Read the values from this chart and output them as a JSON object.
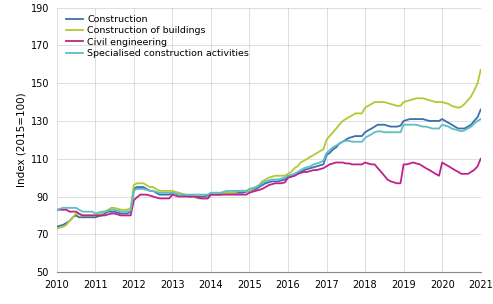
{
  "ylabel": "Index (2015=100)",
  "xlim": [
    2010,
    2021
  ],
  "ylim": [
    50,
    190
  ],
  "yticks": [
    50,
    70,
    90,
    110,
    130,
    150,
    170,
    190
  ],
  "xticks": [
    2010,
    2011,
    2012,
    2013,
    2014,
    2015,
    2016,
    2017,
    2018,
    2019,
    2020,
    2021
  ],
  "series": {
    "Construction": {
      "color": "#3d6faa",
      "x": [
        2010.0,
        2010.08,
        2010.17,
        2010.25,
        2010.33,
        2010.42,
        2010.5,
        2010.58,
        2010.67,
        2010.75,
        2010.83,
        2010.92,
        2011.0,
        2011.08,
        2011.17,
        2011.25,
        2011.33,
        2011.42,
        2011.5,
        2011.58,
        2011.67,
        2011.75,
        2011.83,
        2011.92,
        2012.0,
        2012.08,
        2012.17,
        2012.25,
        2012.33,
        2012.42,
        2012.5,
        2012.58,
        2012.67,
        2012.75,
        2012.83,
        2012.92,
        2013.0,
        2013.08,
        2013.17,
        2013.25,
        2013.33,
        2013.42,
        2013.5,
        2013.58,
        2013.67,
        2013.75,
        2013.83,
        2013.92,
        2014.0,
        2014.08,
        2014.17,
        2014.25,
        2014.33,
        2014.42,
        2014.5,
        2014.58,
        2014.67,
        2014.75,
        2014.83,
        2014.92,
        2015.0,
        2015.08,
        2015.17,
        2015.25,
        2015.33,
        2015.42,
        2015.5,
        2015.58,
        2015.67,
        2015.75,
        2015.83,
        2015.92,
        2016.0,
        2016.08,
        2016.17,
        2016.25,
        2016.33,
        2016.42,
        2016.5,
        2016.58,
        2016.67,
        2016.75,
        2016.83,
        2016.92,
        2017.0,
        2017.08,
        2017.17,
        2017.25,
        2017.33,
        2017.42,
        2017.5,
        2017.58,
        2017.67,
        2017.75,
        2017.83,
        2017.92,
        2018.0,
        2018.08,
        2018.17,
        2018.25,
        2018.33,
        2018.42,
        2018.5,
        2018.58,
        2018.67,
        2018.75,
        2018.83,
        2018.92,
        2019.0,
        2019.08,
        2019.17,
        2019.25,
        2019.33,
        2019.42,
        2019.5,
        2019.58,
        2019.67,
        2019.75,
        2019.83,
        2019.92,
        2020.0,
        2020.08,
        2020.17,
        2020.25,
        2020.33,
        2020.42,
        2020.5,
        2020.58,
        2020.67,
        2020.75,
        2020.83,
        2020.92,
        2021.0
      ],
      "y": [
        74,
        74.5,
        75,
        76,
        77,
        79,
        80,
        79,
        79,
        79,
        79,
        79,
        79,
        79.5,
        80,
        81,
        82,
        82,
        82,
        81.5,
        81,
        81,
        81,
        82,
        94,
        95,
        95,
        95,
        94,
        93,
        93,
        92,
        91,
        91,
        91,
        91,
        92,
        91.5,
        91,
        91,
        90.5,
        90,
        90,
        90,
        90,
        90,
        90,
        90.5,
        91,
        91,
        91,
        91,
        91.5,
        92,
        92,
        92,
        92,
        92,
        92,
        92.5,
        93,
        93.5,
        94,
        95,
        96,
        97,
        97.5,
        98,
        98,
        98,
        98.5,
        99,
        100,
        100.5,
        101,
        102,
        103,
        104,
        104.5,
        105,
        105.5,
        106,
        106.5,
        107,
        112,
        113,
        115,
        116,
        118,
        119,
        120,
        121,
        121.5,
        122,
        122,
        122,
        124,
        125,
        126,
        127,
        128,
        128,
        128,
        127.5,
        127,
        127,
        127,
        127.5,
        130,
        130.5,
        131,
        131,
        131,
        131,
        131,
        130.5,
        130,
        130,
        130,
        130,
        131,
        130,
        129,
        128,
        127,
        126,
        126,
        126,
        127,
        128,
        130,
        132,
        136
      ]
    },
    "Construction of buildings": {
      "color": "#b5c832",
      "x": [
        2010.0,
        2010.08,
        2010.17,
        2010.25,
        2010.33,
        2010.42,
        2010.5,
        2010.58,
        2010.67,
        2010.75,
        2010.83,
        2010.92,
        2011.0,
        2011.08,
        2011.17,
        2011.25,
        2011.33,
        2011.42,
        2011.5,
        2011.58,
        2011.67,
        2011.75,
        2011.83,
        2011.92,
        2012.0,
        2012.08,
        2012.17,
        2012.25,
        2012.33,
        2012.42,
        2012.5,
        2012.58,
        2012.67,
        2012.75,
        2012.83,
        2012.92,
        2013.0,
        2013.08,
        2013.17,
        2013.25,
        2013.33,
        2013.42,
        2013.5,
        2013.58,
        2013.67,
        2013.75,
        2013.83,
        2013.92,
        2014.0,
        2014.08,
        2014.17,
        2014.25,
        2014.33,
        2014.42,
        2014.5,
        2014.58,
        2014.67,
        2014.75,
        2014.83,
        2014.92,
        2015.0,
        2015.08,
        2015.17,
        2015.25,
        2015.33,
        2015.42,
        2015.5,
        2015.58,
        2015.67,
        2015.75,
        2015.83,
        2015.92,
        2016.0,
        2016.08,
        2016.17,
        2016.25,
        2016.33,
        2016.42,
        2016.5,
        2016.58,
        2016.67,
        2016.75,
        2016.83,
        2016.92,
        2017.0,
        2017.08,
        2017.17,
        2017.25,
        2017.33,
        2017.42,
        2017.5,
        2017.58,
        2017.67,
        2017.75,
        2017.83,
        2017.92,
        2018.0,
        2018.08,
        2018.17,
        2018.25,
        2018.33,
        2018.42,
        2018.5,
        2018.58,
        2018.67,
        2018.75,
        2018.83,
        2018.92,
        2019.0,
        2019.08,
        2019.17,
        2019.25,
        2019.33,
        2019.42,
        2019.5,
        2019.58,
        2019.67,
        2019.75,
        2019.83,
        2019.92,
        2020.0,
        2020.08,
        2020.17,
        2020.25,
        2020.33,
        2020.42,
        2020.5,
        2020.58,
        2020.67,
        2020.75,
        2020.83,
        2020.92,
        2021.0
      ],
      "y": [
        73,
        73.5,
        74,
        75,
        77,
        79,
        81,
        80.5,
        80,
        80,
        80,
        80,
        80,
        80.5,
        81,
        82,
        83,
        84,
        84,
        83.5,
        83,
        83,
        83,
        84,
        96,
        97,
        97,
        97,
        96,
        95,
        95,
        94,
        93,
        93,
        93,
        93,
        93,
        92.5,
        92,
        91.5,
        91,
        90.5,
        90,
        89.5,
        89,
        89,
        89,
        89,
        91,
        91,
        91,
        91,
        91.5,
        92,
        92,
        92,
        92.5,
        93,
        93,
        93,
        93,
        94,
        95,
        96,
        98,
        99,
        100,
        100.5,
        101,
        101,
        101,
        101,
        102,
        103,
        105,
        106,
        108,
        109,
        110,
        111,
        112,
        113,
        114,
        115,
        120,
        122,
        124,
        126,
        128,
        130,
        131,
        132,
        133,
        134,
        134,
        134,
        137,
        138,
        139,
        140,
        140,
        140,
        140,
        139.5,
        139,
        138.5,
        138,
        138,
        140,
        140.5,
        141,
        141.5,
        142,
        142,
        142,
        141.5,
        141,
        140.5,
        140,
        140,
        140,
        139.5,
        139,
        138,
        137.5,
        137,
        137.5,
        139,
        141,
        143,
        146,
        150,
        157
      ]
    },
    "Civil engineering": {
      "color": "#c0218a",
      "x": [
        2010.0,
        2010.08,
        2010.17,
        2010.25,
        2010.33,
        2010.42,
        2010.5,
        2010.58,
        2010.67,
        2010.75,
        2010.83,
        2010.92,
        2011.0,
        2011.08,
        2011.17,
        2011.25,
        2011.33,
        2011.42,
        2011.5,
        2011.58,
        2011.67,
        2011.75,
        2011.83,
        2011.92,
        2012.0,
        2012.08,
        2012.17,
        2012.25,
        2012.33,
        2012.42,
        2012.5,
        2012.58,
        2012.67,
        2012.75,
        2012.83,
        2012.92,
        2013.0,
        2013.08,
        2013.17,
        2013.25,
        2013.33,
        2013.42,
        2013.5,
        2013.58,
        2013.67,
        2013.75,
        2013.83,
        2013.92,
        2014.0,
        2014.08,
        2014.17,
        2014.25,
        2014.33,
        2014.42,
        2014.5,
        2014.58,
        2014.67,
        2014.75,
        2014.83,
        2014.92,
        2015.0,
        2015.08,
        2015.17,
        2015.25,
        2015.33,
        2015.42,
        2015.5,
        2015.58,
        2015.67,
        2015.75,
        2015.83,
        2015.92,
        2016.0,
        2016.08,
        2016.17,
        2016.25,
        2016.33,
        2016.42,
        2016.5,
        2016.58,
        2016.67,
        2016.75,
        2016.83,
        2016.92,
        2017.0,
        2017.08,
        2017.17,
        2017.25,
        2017.33,
        2017.42,
        2017.5,
        2017.58,
        2017.67,
        2017.75,
        2017.83,
        2017.92,
        2018.0,
        2018.08,
        2018.17,
        2018.25,
        2018.33,
        2018.42,
        2018.5,
        2018.58,
        2018.67,
        2018.75,
        2018.83,
        2018.92,
        2019.0,
        2019.08,
        2019.17,
        2019.25,
        2019.33,
        2019.42,
        2019.5,
        2019.58,
        2019.67,
        2019.75,
        2019.83,
        2019.92,
        2020.0,
        2020.08,
        2020.17,
        2020.25,
        2020.33,
        2020.42,
        2020.5,
        2020.58,
        2020.67,
        2020.75,
        2020.83,
        2020.92,
        2021.0
      ],
      "y": [
        83,
        83,
        83,
        83,
        82,
        82,
        82,
        81,
        80,
        80,
        80,
        80,
        80,
        80,
        80,
        80,
        80.5,
        81,
        81,
        80.5,
        80,
        80,
        80,
        80,
        88,
        89.5,
        91,
        91,
        91,
        90.5,
        90,
        89.5,
        89,
        89,
        89,
        89,
        91,
        90.5,
        90,
        90,
        90,
        90,
        90,
        90,
        89.5,
        89,
        89,
        89,
        91,
        91,
        91,
        91,
        91,
        91,
        91,
        91,
        91,
        91,
        91,
        91,
        92,
        92.5,
        93,
        93.5,
        94,
        95,
        96,
        96.5,
        97,
        97,
        97,
        97.5,
        100,
        100.5,
        101,
        102,
        102.5,
        103,
        103,
        103.5,
        104,
        104,
        104.5,
        105,
        106,
        107,
        107.5,
        108,
        108,
        108,
        107.5,
        107.5,
        107,
        107,
        107,
        107,
        108,
        107.5,
        107,
        107,
        105,
        103,
        101,
        99,
        98,
        97.5,
        97,
        97,
        107,
        107,
        107.5,
        108,
        107.5,
        107,
        106,
        105,
        104,
        103,
        102,
        101,
        108,
        107,
        106,
        105,
        104,
        103,
        102,
        102,
        102,
        103,
        104,
        106,
        110
      ]
    },
    "Specialised construction activities": {
      "color": "#5bbfc4",
      "x": [
        2010.0,
        2010.08,
        2010.17,
        2010.25,
        2010.33,
        2010.42,
        2010.5,
        2010.58,
        2010.67,
        2010.75,
        2010.83,
        2010.92,
        2011.0,
        2011.08,
        2011.17,
        2011.25,
        2011.33,
        2011.42,
        2011.5,
        2011.58,
        2011.67,
        2011.75,
        2011.83,
        2011.92,
        2012.0,
        2012.08,
        2012.17,
        2012.25,
        2012.33,
        2012.42,
        2012.5,
        2012.58,
        2012.67,
        2012.75,
        2012.83,
        2012.92,
        2013.0,
        2013.08,
        2013.17,
        2013.25,
        2013.33,
        2013.42,
        2013.5,
        2013.58,
        2013.67,
        2013.75,
        2013.83,
        2013.92,
        2014.0,
        2014.08,
        2014.17,
        2014.25,
        2014.33,
        2014.42,
        2014.5,
        2014.58,
        2014.67,
        2014.75,
        2014.83,
        2014.92,
        2015.0,
        2015.08,
        2015.17,
        2015.25,
        2015.33,
        2015.42,
        2015.5,
        2015.58,
        2015.67,
        2015.75,
        2015.83,
        2015.92,
        2016.0,
        2016.08,
        2016.17,
        2016.25,
        2016.33,
        2016.42,
        2016.5,
        2016.58,
        2016.67,
        2016.75,
        2016.83,
        2016.92,
        2017.0,
        2017.08,
        2017.17,
        2017.25,
        2017.33,
        2017.42,
        2017.5,
        2017.58,
        2017.67,
        2017.75,
        2017.83,
        2017.92,
        2018.0,
        2018.08,
        2018.17,
        2018.25,
        2018.33,
        2018.42,
        2018.5,
        2018.58,
        2018.67,
        2018.75,
        2018.83,
        2018.92,
        2019.0,
        2019.08,
        2019.17,
        2019.25,
        2019.33,
        2019.42,
        2019.5,
        2019.58,
        2019.67,
        2019.75,
        2019.83,
        2019.92,
        2020.0,
        2020.08,
        2020.17,
        2020.25,
        2020.33,
        2020.42,
        2020.5,
        2020.58,
        2020.67,
        2020.75,
        2020.83,
        2020.92,
        2021.0
      ],
      "y": [
        83,
        83.5,
        84,
        84,
        84,
        84,
        84,
        83,
        82,
        82,
        82,
        82,
        81,
        81.5,
        82,
        82,
        82.5,
        83,
        83,
        82.5,
        82,
        82,
        82,
        82.5,
        93,
        94,
        94,
        94,
        93.5,
        93,
        93,
        92.5,
        92,
        92,
        92,
        92,
        92,
        91.5,
        91,
        91,
        91,
        91,
        91,
        91,
        91,
        91,
        91,
        91,
        92,
        92,
        92,
        92,
        92.5,
        93,
        93,
        93,
        93,
        93,
        93,
        93,
        94,
        94.5,
        95,
        96,
        97,
        98,
        98.5,
        99,
        99,
        99,
        99.5,
        100,
        101,
        101.5,
        102,
        103,
        104,
        105,
        105.5,
        106,
        107,
        107.5,
        108,
        109,
        113,
        114.5,
        116,
        117,
        118,
        119,
        119.5,
        119.5,
        119,
        119,
        119,
        119,
        121,
        122,
        123,
        124,
        124.5,
        124.5,
        124,
        124,
        124,
        124,
        124,
        124,
        128,
        128,
        128,
        128,
        128,
        127.5,
        127,
        127,
        126.5,
        126,
        126,
        126,
        128,
        127.5,
        127,
        126,
        125.5,
        125,
        124.5,
        125,
        126,
        127,
        128.5,
        130,
        131
      ]
    }
  },
  "legend_order": [
    "Construction",
    "Construction of buildings",
    "Civil engineering",
    "Specialised construction activities"
  ]
}
